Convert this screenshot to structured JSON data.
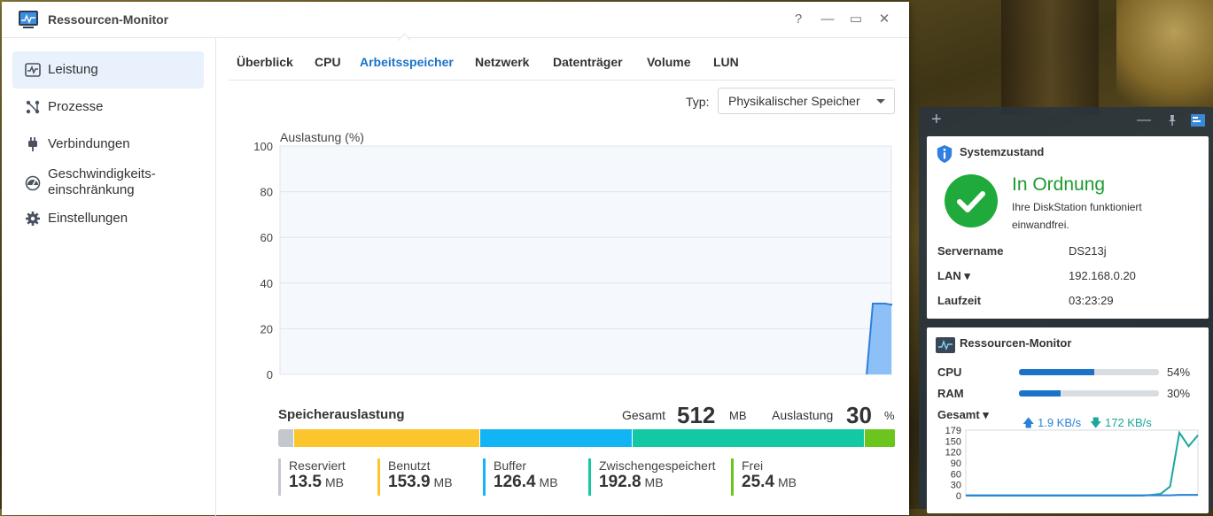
{
  "window": {
    "title": "Ressourcen-Monitor",
    "controls": {
      "help": "?",
      "minimize": "—",
      "maximize": "▭",
      "close": "✕"
    }
  },
  "sidebar": {
    "items": [
      {
        "label": "Leistung",
        "icon": "performance-icon",
        "active": true
      },
      {
        "label": "Prozesse",
        "icon": "processes-icon"
      },
      {
        "label": "Verbindungen",
        "icon": "plug-icon"
      },
      {
        "label_line1": "Geschwindigkeits-",
        "label_line2": "einschränkung",
        "icon": "speedometer-icon"
      },
      {
        "label": "Einstellungen",
        "icon": "gear-icon"
      }
    ]
  },
  "tabs": [
    "Überblick",
    "CPU",
    "Arbeitsspeicher",
    "Netzwerk",
    "Datenträger",
    "Volume",
    "LUN"
  ],
  "active_tab": "Arbeitsspeicher",
  "type_select": {
    "label": "Typ:",
    "value": "Physikalischer Speicher"
  },
  "chart_data": {
    "type": "area",
    "ylabel": "Auslastung (%)",
    "ylim": [
      0,
      100
    ],
    "yticks": [
      0,
      20,
      40,
      60,
      80,
      100
    ],
    "x_points": 100,
    "series": [
      {
        "values_from_index": 95,
        "values": [
          0,
          31,
          31,
          31,
          30.5,
          31,
          30.5,
          31,
          30.5,
          31
        ]
      }
    ],
    "color": "#8ec0f8",
    "line_color": "#2f7fd8"
  },
  "memory": {
    "title": "Speicherauslastung",
    "total_label": "Gesamt",
    "total_value": "512",
    "total_unit": "MB",
    "usage_label": "Auslastung",
    "usage_value": "30",
    "usage_unit": "%",
    "segments": [
      {
        "name": "Reserviert",
        "value": "13.5",
        "unit": "MB",
        "mb": 13.5,
        "color": "#c3c8ce"
      },
      {
        "name": "Benutzt",
        "value": "153.9",
        "unit": "MB",
        "mb": 153.9,
        "color": "#fbc52d"
      },
      {
        "name": "Buffer",
        "value": "126.4",
        "unit": "MB",
        "mb": 126.4,
        "color": "#12b4f4"
      },
      {
        "name": "Zwischengespeichert",
        "value": "192.8",
        "unit": "MB",
        "mb": 192.8,
        "color": "#12c9a4"
      },
      {
        "name": "Frei",
        "value": "25.4",
        "unit": "MB",
        "mb": 25.4,
        "color": "#6cc51e"
      }
    ]
  },
  "widget_panel": {
    "system": {
      "title": "Systemzustand",
      "status": "In Ordnung",
      "status_desc": "Ihre DiskStation funktioniert einwandfrei.",
      "rows": [
        {
          "key": "Servername",
          "value": "DS213j"
        },
        {
          "key": "LAN ▾",
          "value": "192.168.0.20"
        },
        {
          "key": "Laufzeit",
          "value": "03:23:29"
        }
      ]
    },
    "resmon": {
      "title": "Ressourcen-Monitor",
      "cpu_label": "CPU",
      "cpu_pct": "54%",
      "cpu_value": 0.54,
      "ram_label": "RAM",
      "ram_pct": "30%",
      "ram_value": 0.3,
      "total_label": "Gesamt ▾",
      "upload": "1.9 KB/s",
      "download": "172 KB/s",
      "net_chart": {
        "yticks": [
          "179",
          "150",
          "120",
          "90",
          "60",
          "30",
          "0"
        ],
        "upload_color": "#2a82d8",
        "download_color": "#1aa89c",
        "download_values": [
          0,
          0,
          0,
          0,
          0,
          0,
          0,
          0,
          0,
          0,
          0,
          0,
          0,
          0,
          0,
          0,
          0,
          0,
          0,
          0,
          2,
          5,
          25,
          172,
          135,
          165
        ],
        "upload_values": [
          1,
          1,
          1,
          1,
          1,
          1,
          1,
          1,
          1,
          1,
          1,
          1,
          1,
          1,
          1,
          1,
          1,
          1,
          1,
          1,
          1,
          1,
          1,
          2,
          2,
          2
        ]
      }
    }
  }
}
